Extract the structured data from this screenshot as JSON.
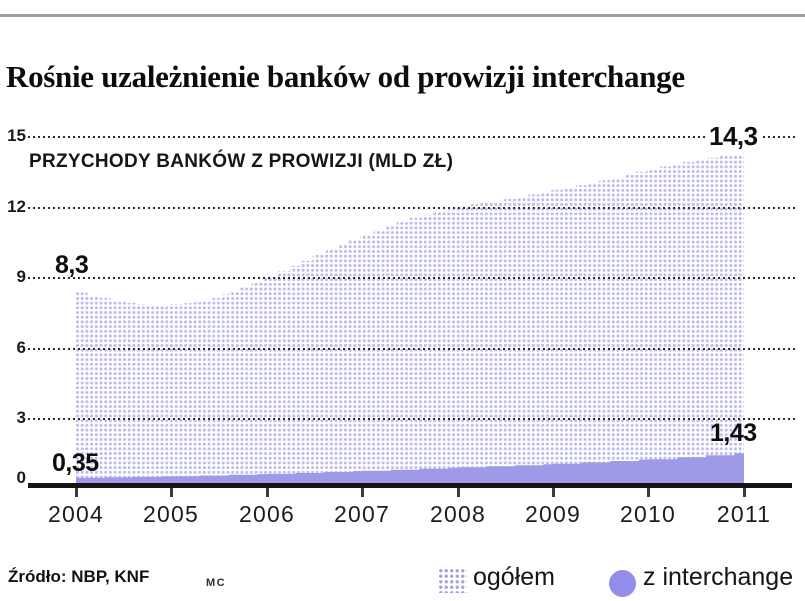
{
  "page": {
    "title": "Rośnie uzależnienie banków od prowizji interchange"
  },
  "chart": {
    "subtitle": "PRZYCHODY BANKÓW Z PROWIZJI (MLD ZŁ)",
    "y_ticks": [
      "15",
      "12",
      "9",
      "6",
      "3",
      "0"
    ],
    "x_ticks": [
      "2004",
      "2005",
      "2006",
      "2007",
      "2008",
      "2009",
      "2010",
      "2011"
    ],
    "annotations": {
      "ogolem_start": "8,3",
      "ogolem_end": "14,3",
      "interchange_start": "0,35",
      "interchange_end": "1,43"
    }
  },
  "legend": {
    "ogolem": "ogółem",
    "interchange": "z interchange"
  },
  "footer": {
    "source": "Źródło: NBP, KNF",
    "credit": "MC"
  },
  "colors": {
    "interchange_fill": "#9e9ae7",
    "ogolem_dot": "#bdbbee",
    "legend_circle": "#918de8",
    "grid": "#2b2b2b"
  },
  "chart_data": {
    "type": "area",
    "title": "Rośnie uzależnienie banków od prowizji interchange",
    "subtitle": "PRZYCHODY BANKÓW Z PROWIZJI (MLD ZŁ)",
    "unit": "mld zł",
    "xlim": [
      2004,
      2011
    ],
    "ylim": [
      0,
      15
    ],
    "x_tick_values": [
      2004,
      2005,
      2006,
      2007,
      2008,
      2009,
      2010,
      2011
    ],
    "y_tick_values": [
      0,
      3,
      6,
      9,
      12,
      15
    ],
    "grid": "dotted-horizontal",
    "legend_position": "bottom-right",
    "series": [
      {
        "name": "ogółem",
        "style": "dotted-pattern-area",
        "first_label": "8,3",
        "last_label": "14,3",
        "points": [
          [
            2004,
            8.3
          ],
          [
            2004.4,
            7.9
          ],
          [
            2004.75,
            7.75
          ],
          [
            2005,
            7.8
          ],
          [
            2005.3,
            7.9
          ],
          [
            2005.6,
            8.3
          ],
          [
            2006,
            9.0
          ],
          [
            2006.5,
            9.9
          ],
          [
            2007,
            10.8
          ],
          [
            2007.5,
            11.5
          ],
          [
            2008,
            12.0
          ],
          [
            2008.5,
            12.3
          ],
          [
            2009,
            12.7
          ],
          [
            2009.5,
            13.1
          ],
          [
            2010,
            13.6
          ],
          [
            2010.5,
            14.0
          ],
          [
            2011,
            14.3
          ]
        ]
      },
      {
        "name": "z interchange",
        "style": "solid-area",
        "first_label": "0,35",
        "last_label": "1,43",
        "points": [
          [
            2004,
            0.35
          ],
          [
            2005,
            0.42
          ],
          [
            2006,
            0.52
          ],
          [
            2007,
            0.65
          ],
          [
            2008,
            0.8
          ],
          [
            2009,
            0.95
          ],
          [
            2010,
            1.15
          ],
          [
            2011,
            1.43
          ]
        ]
      }
    ]
  }
}
